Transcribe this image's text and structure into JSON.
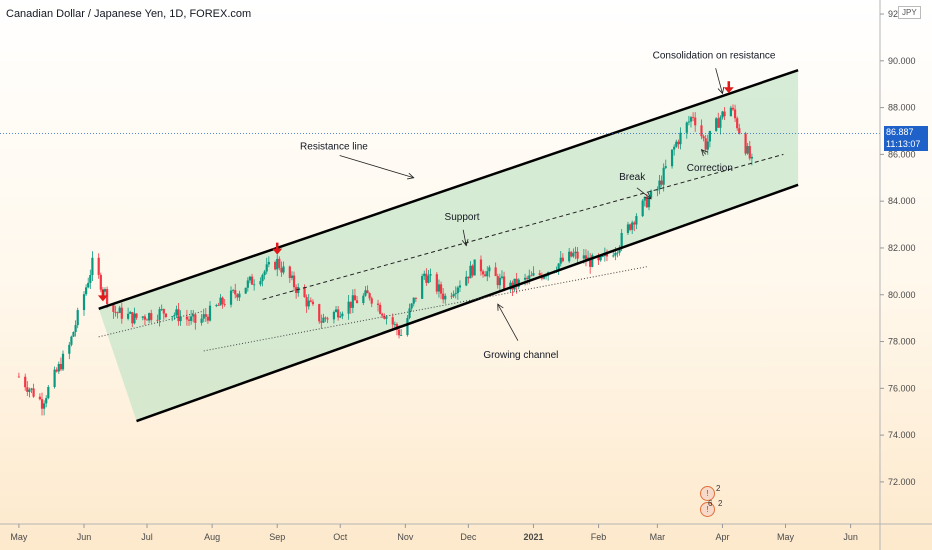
{
  "title": "Canadian Dollar / Japanese Yen, 1D, FOREX.com",
  "currency": "JPY",
  "last_price": "86.887",
  "countdown": "11:13:07",
  "event_counts": [
    "2",
    "6",
    "2"
  ],
  "colors": {
    "up": "#089981",
    "down": "#f23645",
    "channel_fill": "#c8e6c9",
    "price_line": "#1e62c9",
    "arrow": "#e01b1b"
  },
  "chart_data": {
    "type": "candlestick",
    "title": "Canadian Dollar / Japanese Yen, 1D, FOREX.com",
    "ylim": [
      70.2,
      92.6
    ],
    "y_ticks": [
      "72.000",
      "74.000",
      "76.000",
      "78.000",
      "80.000",
      "82.000",
      "84.000",
      "86.000",
      "88.000",
      "90.000",
      "92.000"
    ],
    "x_ticks": [
      "May",
      "Jun",
      "Jul",
      "Aug",
      "Sep",
      "Oct",
      "Nov",
      "Dec",
      "2021",
      "Feb",
      "Mar",
      "Apr",
      "May",
      "Jun"
    ],
    "x_tick_dates": [
      "2020-05-01",
      "2020-06-01",
      "2020-07-01",
      "2020-08-01",
      "2020-09-01",
      "2020-10-01",
      "2020-11-01",
      "2020-12-01",
      "2021-01-01",
      "2021-02-01",
      "2021-03-01",
      "2021-04-01",
      "2021-05-01",
      "2021-06-01"
    ],
    "price_path": [
      {
        "date": "2020-05-01",
        "close": 76.5
      },
      {
        "date": "2020-05-12",
        "close": 75.4
      },
      {
        "date": "2020-05-25",
        "close": 77.8
      },
      {
        "date": "2020-06-05",
        "close": 81.3
      },
      {
        "date": "2020-06-15",
        "close": 79.3
      },
      {
        "date": "2020-06-25",
        "close": 79.0
      },
      {
        "date": "2020-07-10",
        "close": 79.3
      },
      {
        "date": "2020-07-25",
        "close": 78.8
      },
      {
        "date": "2020-08-05",
        "close": 79.6
      },
      {
        "date": "2020-08-20",
        "close": 80.6
      },
      {
        "date": "2020-09-01",
        "close": 81.4
      },
      {
        "date": "2020-09-10",
        "close": 80.3
      },
      {
        "date": "2020-09-22",
        "close": 78.9
      },
      {
        "date": "2020-10-05",
        "close": 79.6
      },
      {
        "date": "2020-10-15",
        "close": 80.0
      },
      {
        "date": "2020-10-30",
        "close": 78.3
      },
      {
        "date": "2020-11-10",
        "close": 80.9
      },
      {
        "date": "2020-11-20",
        "close": 79.9
      },
      {
        "date": "2020-12-05",
        "close": 81.3
      },
      {
        "date": "2020-12-20",
        "close": 80.3
      },
      {
        "date": "2021-01-05",
        "close": 80.9
      },
      {
        "date": "2021-01-20",
        "close": 81.7
      },
      {
        "date": "2021-02-01",
        "close": 81.3
      },
      {
        "date": "2021-02-10",
        "close": 82.1
      },
      {
        "date": "2021-02-20",
        "close": 83.6
      },
      {
        "date": "2021-03-01",
        "close": 84.5
      },
      {
        "date": "2021-03-10",
        "close": 86.5
      },
      {
        "date": "2021-03-18",
        "close": 87.7
      },
      {
        "date": "2021-03-24",
        "close": 86.4
      },
      {
        "date": "2021-03-31",
        "close": 87.6
      },
      {
        "date": "2021-04-05",
        "close": 88.0
      },
      {
        "date": "2021-04-10",
        "close": 86.8
      },
      {
        "date": "2021-04-15",
        "close": 85.6
      }
    ],
    "horizontal_line": {
      "price": 86.887
    },
    "resistance_line": [
      {
        "date": "2020-06-08",
        "price": 79.4
      },
      {
        "date": "2021-05-07",
        "price": 89.6
      }
    ],
    "support_line": [
      {
        "date": "2020-06-26",
        "price": 74.6
      },
      {
        "date": "2021-05-07",
        "price": 84.7
      }
    ],
    "dashed_line": [
      {
        "date": "2020-08-25",
        "price": 79.8
      },
      {
        "date": "2021-04-30",
        "price": 86.0
      }
    ],
    "dotted_lines": [
      [
        {
          "date": "2020-06-08",
          "price": 78.2
        },
        {
          "date": "2020-07-28",
          "price": 79.3
        }
      ],
      [
        {
          "date": "2020-07-28",
          "price": 77.6
        },
        {
          "date": "2021-02-24",
          "price": 81.2
        }
      ]
    ],
    "markers": [
      {
        "type": "arrow-down",
        "date": "2020-06-10",
        "price": 79.8
      },
      {
        "type": "arrow-down",
        "date": "2020-09-01",
        "price": 81.8
      },
      {
        "type": "arrow-down",
        "date": "2021-04-04",
        "price": 88.7
      }
    ],
    "annotations": [
      {
        "text": "Consolidation on resistance",
        "date": "2021-03-28",
        "price": 90.1,
        "arrow_to": {
          "date": "2021-04-01",
          "price": 88.6
        }
      },
      {
        "text": "Resistance line",
        "date": "2020-09-28",
        "price": 86.2,
        "arrow_to": {
          "date": "2020-11-05",
          "price": 85.0
        }
      },
      {
        "text": "Support",
        "date": "2020-11-28",
        "price": 83.2,
        "arrow_to": {
          "date": "2020-11-30",
          "price": 82.1
        }
      },
      {
        "text": "Break",
        "date": "2021-02-17",
        "price": 84.9,
        "arrow_to": {
          "date": "2021-02-26",
          "price": 84.1
        }
      },
      {
        "text": "Correction",
        "date": "2021-03-26",
        "price": 85.3,
        "arrow_to": {
          "date": "2021-03-22",
          "price": 86.2
        }
      },
      {
        "text": "Growing channel",
        "date": "2020-12-26",
        "price": 77.3,
        "arrow_to": {
          "date": "2020-12-15",
          "price": 79.6
        }
      }
    ]
  }
}
